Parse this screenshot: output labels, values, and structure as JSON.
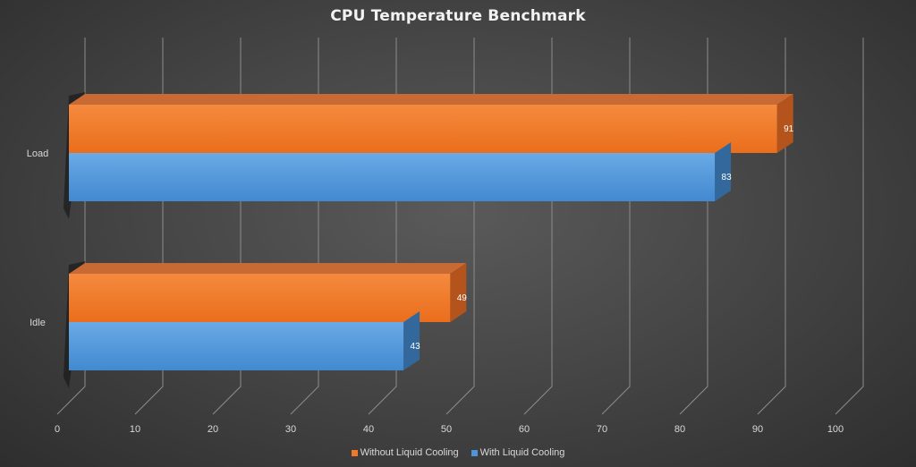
{
  "chart_data": {
    "type": "bar",
    "orientation": "horizontal",
    "style": "3d",
    "title": "CPU Temperature Benchmark",
    "categories": [
      "Load",
      "Idle"
    ],
    "series": [
      {
        "name": "Without Liquid Cooling",
        "color": "#f07a2a",
        "values": [
          91,
          49
        ]
      },
      {
        "name": "With Liquid Cooling",
        "color": "#4e94d6",
        "values": [
          83,
          43
        ]
      }
    ],
    "xlim": [
      0,
      100
    ],
    "xticks": [
      0,
      10,
      20,
      30,
      40,
      50,
      60,
      70,
      80,
      90,
      100
    ],
    "grid": true,
    "legend_position": "bottom",
    "xlabel": "",
    "ylabel": ""
  }
}
